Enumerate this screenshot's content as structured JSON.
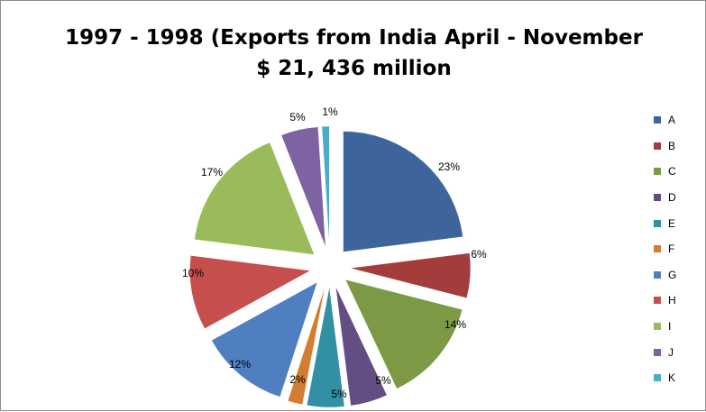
{
  "chart_data": {
    "type": "pie",
    "title": "1997 - 1998 (Exports from India April - November",
    "subtitle": "$ 21, 436 million",
    "legend_position": "right",
    "exploded": true,
    "categories": [
      "A",
      "B",
      "C",
      "D",
      "E",
      "F",
      "G",
      "H",
      "I",
      "J",
      "K"
    ],
    "values": [
      23,
      6,
      14,
      5,
      5,
      2,
      12,
      10,
      17,
      5,
      1
    ],
    "data_labels": [
      "23%",
      "6%",
      "14%",
      "5%",
      "5%",
      "2%",
      "12%",
      "10%",
      "17%",
      "5%",
      "1%"
    ],
    "colors": [
      "#3d659b",
      "#a33d3b",
      "#7c9a45",
      "#644d82",
      "#3390a4",
      "#d47c2f",
      "#4f7fc0",
      "#c64f4d",
      "#9abb59",
      "#7f62a1",
      "#4bacc6"
    ]
  }
}
